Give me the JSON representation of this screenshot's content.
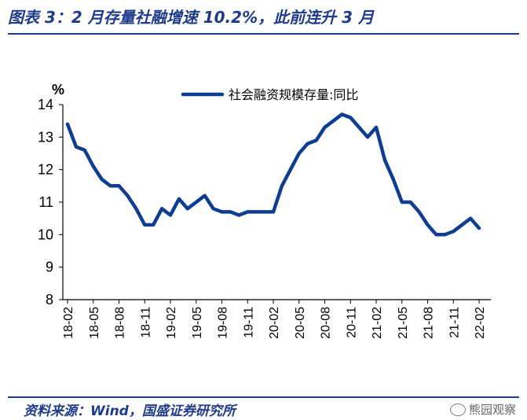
{
  "header": {
    "title": "图表 3：2 月存量社融增速 10.2%，此前连升 3 月"
  },
  "footer": {
    "source": "资料来源：Wind，国盛证券研究所",
    "watermark": "熊园观察"
  },
  "chart_data": {
    "type": "line",
    "unit": "%",
    "ylim": [
      8,
      14
    ],
    "yticks": [
      "8",
      "9",
      "10",
      "11",
      "12",
      "13",
      "14"
    ],
    "xticks": [
      "18-02",
      "18-05",
      "18-08",
      "18-11",
      "19-02",
      "19-05",
      "19-08",
      "19-11",
      "20-02",
      "20-05",
      "20-08",
      "20-11",
      "21-02",
      "21-05",
      "21-08",
      "21-11",
      "22-02"
    ],
    "legend": "top",
    "grid": false,
    "series": [
      {
        "name": "社会融资规模存量:同比",
        "color": "#0f3d91",
        "x": [
          "18-02",
          "18-03",
          "18-04",
          "18-05",
          "18-06",
          "18-07",
          "18-08",
          "18-09",
          "18-10",
          "18-11",
          "18-12",
          "19-01",
          "19-02",
          "19-03",
          "19-04",
          "19-05",
          "19-06",
          "19-07",
          "19-08",
          "19-09",
          "19-10",
          "19-11",
          "19-12",
          "20-01",
          "20-02",
          "20-03",
          "20-04",
          "20-05",
          "20-06",
          "20-07",
          "20-08",
          "20-09",
          "20-10",
          "20-11",
          "20-12",
          "21-01",
          "21-02",
          "21-03",
          "21-04",
          "21-05",
          "21-06",
          "21-07",
          "21-08",
          "21-09",
          "21-10",
          "21-11",
          "21-12",
          "22-01",
          "22-02"
        ],
        "values": [
          13.4,
          12.7,
          12.6,
          12.1,
          11.7,
          11.5,
          11.5,
          11.2,
          10.8,
          10.3,
          10.3,
          10.8,
          10.6,
          11.1,
          10.8,
          11.0,
          11.2,
          10.8,
          10.7,
          10.7,
          10.6,
          10.7,
          10.7,
          10.7,
          10.7,
          11.5,
          12.0,
          12.5,
          12.8,
          12.9,
          13.3,
          13.5,
          13.7,
          13.6,
          13.3,
          13.0,
          13.3,
          12.3,
          11.7,
          11.0,
          11.0,
          10.7,
          10.3,
          10.0,
          10.0,
          10.1,
          10.3,
          10.5,
          10.2
        ]
      }
    ]
  }
}
